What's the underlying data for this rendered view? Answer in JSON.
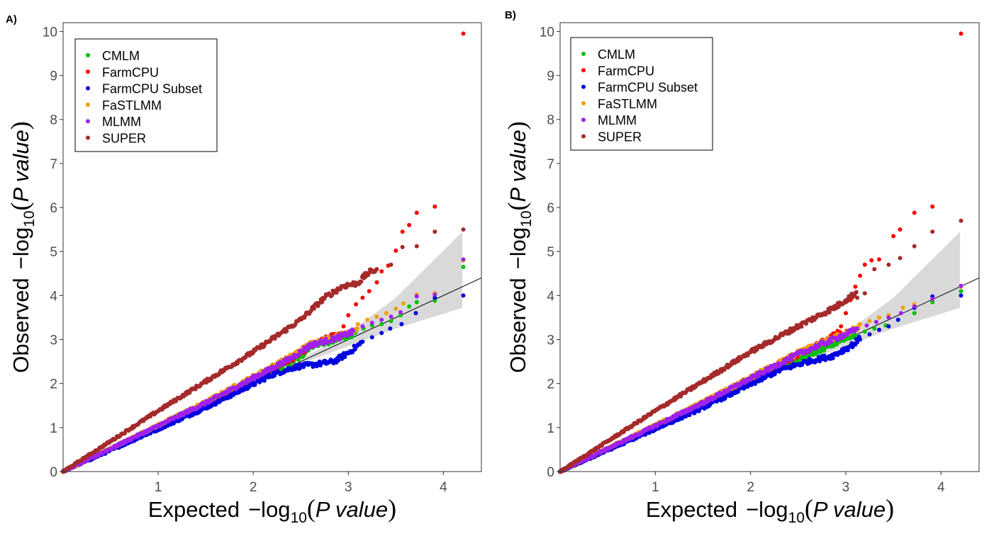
{
  "chart_data": [
    {
      "type": "scatter",
      "panel_label": "A)",
      "x_axis_label": {
        "prefix": "Expected",
        "log": "−log",
        "sub": "10",
        "open": "(",
        "inner": "P value",
        "close": ")"
      },
      "y_axis_label": {
        "prefix": "Observed",
        "log": "−log",
        "sub": "10",
        "open": "(",
        "inner": "P value",
        "close": ")"
      },
      "xlim": [
        0,
        4.4
      ],
      "ylim": [
        0,
        10.2
      ],
      "x_ticks": [
        "1",
        "2",
        "3",
        "4"
      ],
      "y_ticks": [
        "0",
        "1",
        "2",
        "3",
        "4",
        "5",
        "6",
        "7",
        "8",
        "9",
        "10"
      ],
      "legend_position": "top-left",
      "grid": false,
      "reference_line": {
        "intercept": 0,
        "slope": 1
      },
      "confidence_band": {
        "x": [
          2.5,
          3.0,
          3.5,
          4.2
        ],
        "lower": [
          2.45,
          2.85,
          3.25,
          3.72
        ],
        "upper": [
          2.55,
          3.15,
          3.95,
          5.45
        ]
      },
      "series": [
        {
          "name": "CMLM",
          "color": "#00c000",
          "curve": [
            [
              0,
              0
            ],
            [
              1.5,
              1.52
            ],
            [
              2.5,
              2.6
            ],
            [
              2.6,
              2.85
            ],
            [
              2.9,
              3.0
            ],
            [
              3.2,
              3.25
            ],
            [
              3.5,
              3.45
            ],
            [
              3.9,
              3.85
            ],
            [
              4.21,
              4.65
            ]
          ],
          "tail": [
            [
              3.08,
              3.18
            ],
            [
              3.16,
              3.25
            ],
            [
              3.25,
              3.32
            ],
            [
              3.35,
              3.35
            ],
            [
              3.45,
              3.42
            ],
            [
              3.55,
              3.55
            ],
            [
              3.64,
              3.75
            ],
            [
              3.72,
              3.85
            ],
            [
              3.91,
              3.88
            ],
            [
              4.21,
              4.65
            ]
          ]
        },
        {
          "name": "FarmCPU",
          "color": "#ff0000",
          "curve": [
            [
              0,
              0
            ],
            [
              1.5,
              1.55
            ],
            [
              2.4,
              2.55
            ],
            [
              2.6,
              2.85
            ],
            [
              2.8,
              3.05
            ],
            [
              3.0,
              3.2
            ]
          ],
          "tail": [
            [
              2.95,
              3.3
            ],
            [
              3.0,
              3.55
            ],
            [
              3.08,
              3.8
            ],
            [
              3.15,
              3.95
            ],
            [
              3.22,
              4.1
            ],
            [
              3.3,
              4.3
            ],
            [
              3.35,
              4.55
            ],
            [
              3.42,
              4.68
            ],
            [
              3.5,
              5.02
            ],
            [
              3.57,
              5.45
            ],
            [
              3.64,
              5.6
            ],
            [
              3.72,
              5.88
            ],
            [
              3.91,
              6.02
            ],
            [
              4.21,
              9.95
            ]
          ]
        },
        {
          "name": "FarmCPU Subset",
          "color": "#0000e0",
          "curve": [
            [
              0,
              0
            ],
            [
              1.5,
              1.45
            ],
            [
              2.2,
              2.2
            ],
            [
              2.45,
              2.38
            ],
            [
              2.7,
              2.45
            ],
            [
              2.85,
              2.5
            ],
            [
              3.0,
              2.7
            ],
            [
              3.2,
              3.02
            ],
            [
              3.5,
              3.35
            ],
            [
              3.9,
              3.9
            ],
            [
              4.21,
              4.0
            ]
          ],
          "tail": [
            [
              3.15,
              2.95
            ],
            [
              3.25,
              3.05
            ],
            [
              3.35,
              3.15
            ],
            [
              3.44,
              3.25
            ],
            [
              3.56,
              3.35
            ],
            [
              3.71,
              3.6
            ],
            [
              3.91,
              3.95
            ],
            [
              4.21,
              4.0
            ]
          ]
        },
        {
          "name": "FaSTLMM",
          "color": "#f0a000",
          "curve": [
            [
              0,
              0
            ],
            [
              1.5,
              1.58
            ],
            [
              2.4,
              2.62
            ],
            [
              2.6,
              2.9
            ],
            [
              2.9,
              3.08
            ],
            [
              3.2,
              3.35
            ],
            [
              3.5,
              3.6
            ],
            [
              3.9,
              4.05
            ],
            [
              4.21,
              4.8
            ]
          ],
          "tail": [
            [
              3.1,
              3.35
            ],
            [
              3.2,
              3.45
            ],
            [
              3.3,
              3.52
            ],
            [
              3.4,
              3.6
            ],
            [
              3.5,
              3.7
            ],
            [
              3.58,
              3.82
            ],
            [
              3.72,
              4.02
            ],
            [
              3.91,
              4.05
            ],
            [
              4.21,
              4.8
            ]
          ]
        },
        {
          "name": "MLMM",
          "color": "#a020f0",
          "curve": [
            [
              0,
              0
            ],
            [
              1.5,
              1.56
            ],
            [
              2.4,
              2.58
            ],
            [
              2.6,
              2.87
            ],
            [
              2.9,
              3.05
            ],
            [
              3.2,
              3.3
            ],
            [
              3.5,
              3.55
            ],
            [
              3.9,
              4.0
            ],
            [
              4.21,
              4.82
            ]
          ],
          "tail": [
            [
              3.05,
              3.2
            ],
            [
              3.15,
              3.3
            ],
            [
              3.25,
              3.38
            ],
            [
              3.35,
              3.45
            ],
            [
              3.45,
              3.52
            ],
            [
              3.55,
              3.62
            ],
            [
              3.72,
              3.98
            ],
            [
              3.91,
              4.02
            ],
            [
              4.21,
              4.82
            ]
          ]
        },
        {
          "name": "SUPER",
          "color": "#a52a2a",
          "curve": [
            [
              0,
              0
            ],
            [
              1.0,
              1.38
            ],
            [
              2.0,
              2.72
            ],
            [
              2.5,
              3.45
            ],
            [
              2.75,
              3.95
            ],
            [
              2.95,
              4.22
            ],
            [
              3.1,
              4.28
            ],
            [
              3.2,
              4.5
            ],
            [
              3.4,
              4.7
            ],
            [
              3.6,
              5.05
            ],
            [
              3.9,
              5.45
            ],
            [
              4.21,
              5.5
            ]
          ],
          "tail": [
            [
              3.3,
              4.6
            ],
            [
              3.45,
              4.7
            ],
            [
              3.57,
              5.1
            ],
            [
              3.72,
              5.12
            ],
            [
              3.91,
              5.45
            ],
            [
              4.21,
              5.5
            ]
          ]
        }
      ]
    },
    {
      "type": "scatter",
      "panel_label": "B)",
      "x_axis_label": {
        "prefix": "Expected",
        "log": "−log",
        "sub": "10",
        "open": "(",
        "inner": "P value",
        "close": ")"
      },
      "y_axis_label": {
        "prefix": "Observed",
        "log": "−log",
        "sub": "10",
        "open": "(",
        "inner": "P value",
        "close": ")"
      },
      "xlim": [
        0,
        4.4
      ],
      "ylim": [
        0,
        10.2
      ],
      "x_ticks": [
        "1",
        "2",
        "3",
        "4"
      ],
      "y_ticks": [
        "0",
        "1",
        "2",
        "3",
        "4",
        "5",
        "6",
        "7",
        "8",
        "9",
        "10"
      ],
      "legend_position": "top-left",
      "grid": false,
      "reference_line": {
        "intercept": 0,
        "slope": 1
      },
      "confidence_band": {
        "x": [
          2.5,
          3.0,
          3.5,
          4.2
        ],
        "lower": [
          2.45,
          2.85,
          3.25,
          3.72
        ],
        "upper": [
          2.55,
          3.15,
          3.95,
          5.45
        ]
      },
      "series": [
        {
          "name": "CMLM",
          "color": "#00c000",
          "curve": [
            [
              0,
              0
            ],
            [
              1.5,
              1.5
            ],
            [
              2.5,
              2.55
            ],
            [
              3.0,
              3.02
            ],
            [
              3.2,
              3.2
            ],
            [
              3.5,
              3.45
            ],
            [
              3.9,
              3.85
            ],
            [
              4.21,
              4.1
            ]
          ],
          "tail": [
            [
              3.1,
              3.1
            ],
            [
              3.2,
              3.18
            ],
            [
              3.3,
              3.25
            ],
            [
              3.42,
              3.32
            ],
            [
              3.55,
              3.45
            ],
            [
              3.72,
              3.6
            ],
            [
              3.91,
              3.85
            ],
            [
              4.21,
              4.1
            ]
          ]
        },
        {
          "name": "FarmCPU",
          "color": "#ff0000",
          "curve": [
            [
              0,
              0
            ],
            [
              1.5,
              1.55
            ],
            [
              2.5,
              2.65
            ],
            [
              2.8,
              3.0
            ],
            [
              3.0,
              3.25
            ]
          ],
          "tail": [
            [
              2.95,
              3.3
            ],
            [
              3.0,
              3.6
            ],
            [
              3.05,
              3.9
            ],
            [
              3.1,
              4.2
            ],
            [
              3.15,
              4.45
            ],
            [
              3.2,
              4.7
            ],
            [
              3.27,
              4.8
            ],
            [
              3.35,
              4.82
            ],
            [
              3.5,
              5.35
            ],
            [
              3.57,
              5.5
            ],
            [
              3.72,
              5.88
            ],
            [
              3.91,
              6.02
            ],
            [
              4.21,
              9.95
            ]
          ]
        },
        {
          "name": "FarmCPU Subset",
          "color": "#0000e0",
          "curve": [
            [
              0,
              0
            ],
            [
              1.5,
              1.45
            ],
            [
              2.3,
              2.3
            ],
            [
              2.6,
              2.5
            ],
            [
              2.85,
              2.62
            ],
            [
              3.05,
              2.85
            ],
            [
              3.2,
              3.1
            ],
            [
              3.5,
              3.4
            ],
            [
              3.9,
              3.9
            ],
            [
              4.21,
              4.0
            ]
          ],
          "tail": [
            [
              3.15,
              3.0
            ],
            [
              3.25,
              3.12
            ],
            [
              3.35,
              3.22
            ],
            [
              3.45,
              3.3
            ],
            [
              3.55,
              3.45
            ],
            [
              3.72,
              3.72
            ],
            [
              3.91,
              3.98
            ],
            [
              4.21,
              4.0
            ]
          ]
        },
        {
          "name": "FaSTLMM",
          "color": "#f0a000",
          "curve": [
            [
              0,
              0
            ],
            [
              1.5,
              1.58
            ],
            [
              2.5,
              2.7
            ],
            [
              3.0,
              3.15
            ],
            [
              3.3,
              3.45
            ],
            [
              3.6,
              3.7
            ],
            [
              3.9,
              3.9
            ],
            [
              4.21,
              4.2
            ]
          ],
          "tail": [
            [
              3.15,
              3.35
            ],
            [
              3.25,
              3.42
            ],
            [
              3.35,
              3.5
            ],
            [
              3.45,
              3.55
            ],
            [
              3.6,
              3.72
            ],
            [
              3.72,
              3.8
            ],
            [
              3.91,
              3.92
            ],
            [
              4.21,
              4.2
            ]
          ]
        },
        {
          "name": "MLMM",
          "color": "#a020f0",
          "curve": [
            [
              0,
              0
            ],
            [
              1.5,
              1.56
            ],
            [
              2.5,
              2.67
            ],
            [
              3.0,
              3.12
            ],
            [
              3.3,
              3.4
            ],
            [
              3.6,
              3.65
            ],
            [
              3.9,
              3.9
            ],
            [
              4.21,
              4.22
            ]
          ],
          "tail": [
            [
              3.12,
              3.25
            ],
            [
              3.22,
              3.32
            ],
            [
              3.32,
              3.4
            ],
            [
              3.45,
              3.5
            ],
            [
              3.58,
              3.6
            ],
            [
              3.72,
              3.75
            ],
            [
              3.91,
              3.92
            ],
            [
              4.21,
              4.22
            ]
          ]
        },
        {
          "name": "SUPER",
          "color": "#a52a2a",
          "curve": [
            [
              0,
              0
            ],
            [
              1.0,
              1.38
            ],
            [
              2.0,
              2.72
            ],
            [
              2.5,
              3.3
            ],
            [
              2.9,
              3.75
            ],
            [
              3.1,
              4.05
            ],
            [
              3.3,
              4.5
            ],
            [
              3.6,
              5.0
            ],
            [
              3.9,
              5.45
            ],
            [
              4.21,
              5.7
            ]
          ],
          "tail": [
            [
              3.12,
              3.95
            ],
            [
              3.2,
              4.05
            ],
            [
              3.3,
              4.6
            ],
            [
              3.45,
              4.7
            ],
            [
              3.57,
              4.85
            ],
            [
              3.72,
              5.12
            ],
            [
              3.91,
              5.45
            ],
            [
              4.21,
              5.7
            ]
          ]
        }
      ]
    }
  ]
}
